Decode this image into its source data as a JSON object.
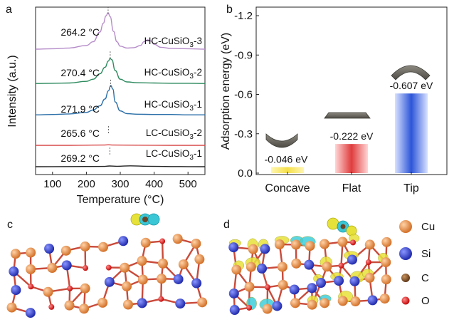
{
  "panels": {
    "a": "a",
    "b": "b",
    "c": "c",
    "d": "d"
  },
  "chart_data": [
    {
      "type": "line",
      "panel": "a",
      "title": "",
      "xlabel": "Temperature (°C)",
      "ylabel": "Intensity (a.u.)",
      "xlim": [
        50,
        550
      ],
      "xticks": [
        100,
        200,
        300,
        400,
        500
      ],
      "series": [
        {
          "name": "HC-CuSiO3-3",
          "label_main": "HC-CuSiO",
          "label_sub": "3",
          "label_tail": "-3",
          "color": "#b58cc9",
          "peak_temp": 264.2,
          "peak_label": "264.2 °C",
          "x": [
            50,
            100,
            150,
            200,
            220,
            240,
            250,
            258,
            264,
            270,
            280,
            290,
            300,
            320,
            340,
            360,
            370,
            380,
            390,
            400,
            420,
            450,
            500,
            550
          ],
          "y": [
            0.02,
            0.03,
            0.05,
            0.12,
            0.22,
            0.48,
            0.72,
            0.92,
            1.0,
            0.9,
            0.5,
            0.22,
            0.1,
            0.05,
            0.06,
            0.12,
            0.22,
            0.27,
            0.24,
            0.15,
            0.07,
            0.04,
            0.03,
            0.02
          ]
        },
        {
          "name": "HC-CuSiO3-2",
          "label_main": "HC-CuSiO",
          "label_sub": "3",
          "label_tail": "-2",
          "color": "#2e8b5f",
          "peak_temp": 270.4,
          "peak_label": "270.4 °C",
          "x": [
            50,
            100,
            150,
            200,
            220,
            240,
            255,
            265,
            270,
            275,
            285,
            300,
            320,
            350,
            400,
            450,
            500,
            550
          ],
          "y": [
            0.02,
            0.03,
            0.04,
            0.1,
            0.18,
            0.38,
            0.62,
            0.85,
            0.95,
            0.9,
            0.5,
            0.18,
            0.08,
            0.05,
            0.04,
            0.03,
            0.03,
            0.02
          ]
        },
        {
          "name": "HC-CuSiO3-1",
          "label_main": "HC-CuSiO",
          "label_sub": "3",
          "label_tail": "-1",
          "color": "#2b6fa8",
          "peak_temp": 271.9,
          "peak_label": "271.9 °C",
          "x": [
            50,
            100,
            150,
            200,
            220,
            240,
            255,
            265,
            272,
            278,
            285,
            300,
            320,
            350,
            400,
            450,
            500,
            550
          ],
          "y": [
            0.02,
            0.03,
            0.05,
            0.1,
            0.18,
            0.32,
            0.55,
            0.82,
            1.0,
            0.88,
            0.45,
            0.15,
            0.06,
            0.04,
            0.03,
            0.03,
            0.02,
            0.02
          ]
        },
        {
          "name": "LC-CuSiO3-2",
          "label_main": "LC-CuSiO",
          "label_sub": "3",
          "label_tail": "-2",
          "color": "#d94a4a",
          "peak_temp": 265.6,
          "peak_label": "265.6 °C",
          "x": [
            50,
            150,
            250,
            265,
            280,
            350,
            450,
            550
          ],
          "y": [
            0.0,
            0.0,
            0.02,
            0.04,
            0.02,
            0.01,
            0.0,
            0.0
          ]
        },
        {
          "name": "LC-CuSiO3-1",
          "label_main": "LC-CuSiO",
          "label_sub": "3",
          "label_tail": "-1",
          "color": "#222222",
          "peak_temp": 269.2,
          "peak_label": "269.2 °C",
          "x": [
            50,
            150,
            250,
            269,
            290,
            330,
            380,
            450,
            550
          ],
          "y": [
            0.0,
            0.01,
            0.02,
            0.05,
            0.03,
            0.06,
            0.03,
            0.01,
            0.0
          ]
        }
      ]
    },
    {
      "type": "bar",
      "panel": "b",
      "title": "",
      "xlabel": "",
      "ylabel": "Adsorption energy (eV)",
      "ylim": [
        0.0,
        -1.2
      ],
      "yticks": [
        "-1.2",
        "-0.9",
        "-0.6",
        "-0.3",
        "0.0"
      ],
      "ytick_values": [
        -1.2,
        -0.9,
        -0.6,
        -0.3,
        0.0
      ],
      "categories": [
        "Concave",
        "Flat",
        "Tip"
      ],
      "values": [
        -0.046,
        -0.222,
        -0.607
      ],
      "value_labels": [
        "-0.046 eV",
        "-0.222 eV",
        "-0.607 eV"
      ],
      "colors": [
        "#f2e14a",
        "#e04848",
        "#3a62d6"
      ]
    }
  ],
  "legend_d": {
    "items": [
      {
        "label": "Cu",
        "color": "#e58a3c"
      },
      {
        "label": "Si",
        "color": "#2838c8"
      },
      {
        "label": "C",
        "color": "#7a4a22"
      },
      {
        "label": "O",
        "color": "#e02020"
      }
    ]
  }
}
